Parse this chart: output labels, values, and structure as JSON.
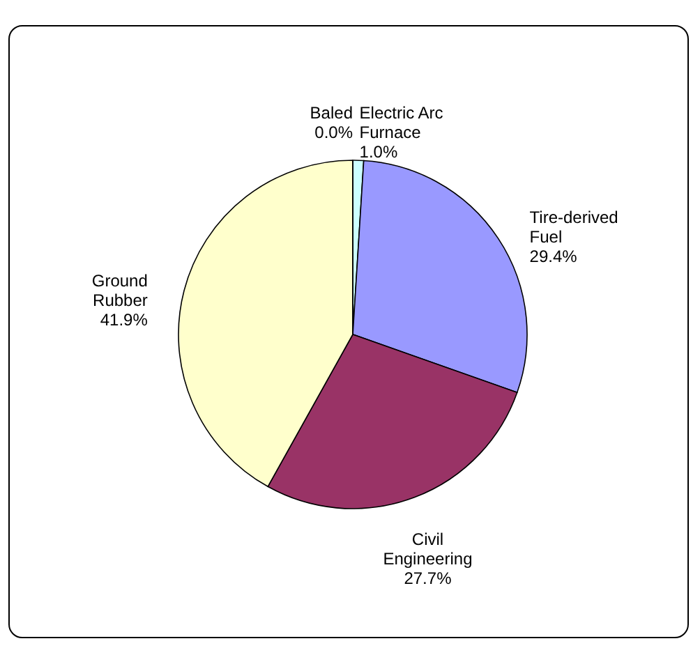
{
  "chart_data": {
    "type": "pie",
    "categories": [
      "Electric Arc Furnace",
      "Tire-derived Fuel",
      "Civil Engineering",
      "Ground Rubber",
      "Baled"
    ],
    "values": [
      1.0,
      29.4,
      27.7,
      41.9,
      0.0
    ],
    "value_labels": [
      "1.0%",
      "29.4%",
      "27.7%",
      "41.9%",
      "0.0%"
    ],
    "colors": [
      "#ccffff",
      "#9999ff",
      "#993366",
      "#ffffcc",
      "#660066"
    ],
    "legend": false
  }
}
